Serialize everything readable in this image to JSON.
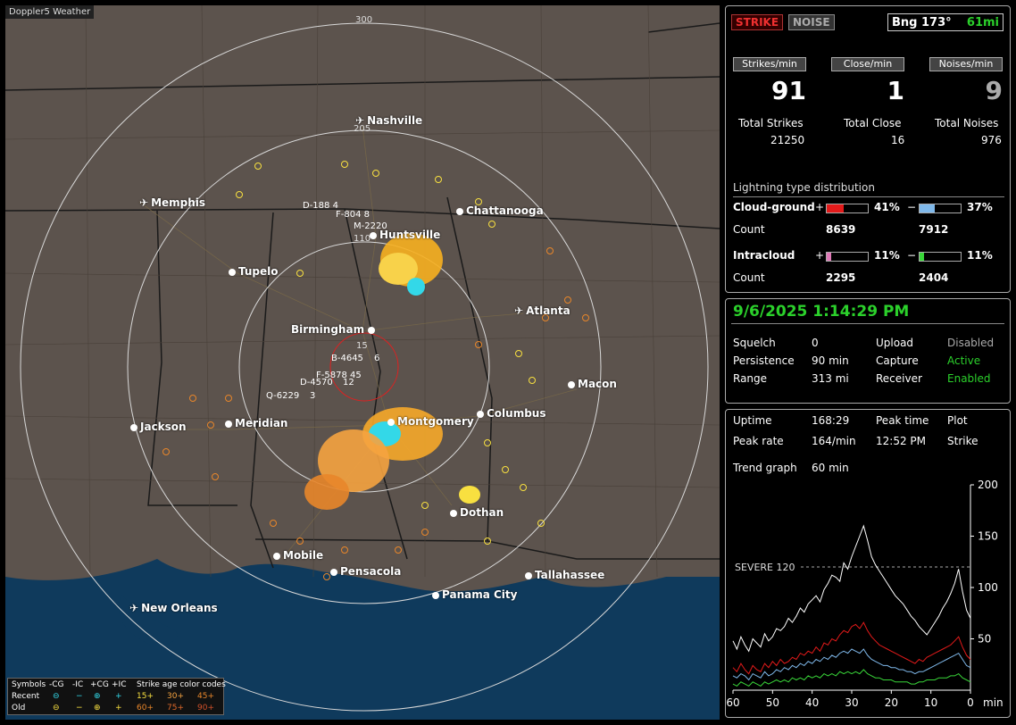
{
  "app": {
    "title": "Doppler5 Weather"
  },
  "colors": {
    "cg_pos": "#e31a1a",
    "cg_neg": "#7fb8ea",
    "ic_pos": "#e07ab8",
    "ic_neg": "#39d639",
    "accent_green": "#2bd02b"
  },
  "map": {
    "ring_labels": [
      "300",
      "205",
      "110",
      "15"
    ],
    "cities": [
      {
        "name": "Nashville",
        "icon": "plane-icon"
      },
      {
        "name": "Memphis",
        "icon": "plane-icon"
      },
      {
        "name": "Chattanooga",
        "icon": "dot"
      },
      {
        "name": "Huntsville",
        "icon": "dot"
      },
      {
        "name": "Tupelo",
        "icon": "dot"
      },
      {
        "name": "Atlanta",
        "icon": "plane-icon"
      },
      {
        "name": "Birmingham",
        "icon": "dot"
      },
      {
        "name": "Macon",
        "icon": "dot"
      },
      {
        "name": "Jackson",
        "icon": "dot"
      },
      {
        "name": "Meridian",
        "icon": "dot"
      },
      {
        "name": "Montgomery",
        "icon": "dot"
      },
      {
        "name": "Columbus",
        "icon": "dot"
      },
      {
        "name": "Dothan",
        "icon": "dot"
      },
      {
        "name": "Mobile",
        "icon": "dot"
      },
      {
        "name": "Pensacola",
        "icon": "dot"
      },
      {
        "name": "Tallahassee",
        "icon": "dot"
      },
      {
        "name": "Panama City",
        "icon": "dot"
      },
      {
        "name": "New Orleans",
        "icon": "plane-icon"
      }
    ],
    "storm_tags": [
      "D-188 4",
      "F-804 8",
      "M-2220",
      "B-4645",
      "6",
      "F-5878 45",
      "D-4570",
      "12",
      "Q-6229",
      "3"
    ]
  },
  "legend": {
    "symbols_label": "Symbols",
    "col_headers": [
      "-CG",
      "-IC",
      "+CG",
      "+IC"
    ],
    "age_label": "Strike age color codes",
    "recent_label": "Recent",
    "old_label": "Old",
    "recent_ages": [
      "15+",
      "30+",
      "45+"
    ],
    "old_ages": [
      "60+",
      "75+",
      "90+"
    ]
  },
  "status": {
    "strike_btn": "STRIKE",
    "noise_btn": "NOISE",
    "bearing": "Bng 173°",
    "distance": "61mi"
  },
  "rates": {
    "strikes_min_label": "Strikes/min",
    "strikes_min": "91",
    "close_min_label": "Close/min",
    "close_min": "1",
    "noises_min_label": "Noises/min",
    "noises_min": "9",
    "total_strikes_label": "Total Strikes",
    "total_strikes": "21250",
    "total_close_label": "Total Close",
    "total_close": "16",
    "total_noises_label": "Total Noises",
    "total_noises": "976"
  },
  "distribution": {
    "title": "Lightning type distribution",
    "cg_label": "Cloud-ground",
    "ic_label": "Intracloud",
    "count_label": "Count",
    "plus": "+",
    "minus": "−",
    "cg_pos_pct": "41%",
    "cg_pos_frac": 0.41,
    "cg_neg_pct": "37%",
    "cg_neg_frac": 0.37,
    "cg_pos_count": "8639",
    "cg_neg_count": "7912",
    "ic_pos_pct": "11%",
    "ic_pos_frac": 0.11,
    "ic_neg_pct": "11%",
    "ic_neg_frac": 0.11,
    "ic_pos_count": "2295",
    "ic_neg_count": "2404"
  },
  "settings": {
    "datetime": "9/6/2025 1:14:29 PM",
    "squelch_label": "Squelch",
    "squelch": "0",
    "persistence_label": "Persistence",
    "persistence": "90 min",
    "range_label": "Range",
    "range": "313 mi",
    "upload_label": "Upload",
    "upload": "Disabled",
    "capture_label": "Capture",
    "capture": "Active",
    "receiver_label": "Receiver",
    "receiver": "Enabled"
  },
  "stats": {
    "uptime_label": "Uptime",
    "uptime": "168:29",
    "peak_time_label": "Peak time",
    "peak_time": "12:52 PM",
    "plot_label": "Plot",
    "plot": "Strike",
    "peak_rate_label": "Peak rate",
    "peak_rate": "164/min",
    "trend_label": "Trend graph",
    "trend": "60 min"
  },
  "chart_data": {
    "type": "line",
    "xlabel": "min",
    "x_ticks": [
      "60",
      "50",
      "40",
      "30",
      "20",
      "10",
      "0"
    ],
    "y_ticks": [
      "200",
      "150",
      "100",
      "50"
    ],
    "xlim": [
      60,
      0
    ],
    "ylim": [
      0,
      200
    ],
    "threshold": {
      "label": "SEVERE 120",
      "value": 120
    },
    "series": [
      {
        "color": "#ffffff",
        "values": [
          48,
          40,
          52,
          44,
          38,
          50,
          46,
          42,
          55,
          48,
          52,
          60,
          58,
          62,
          70,
          66,
          72,
          80,
          76,
          84,
          88,
          92,
          86,
          98,
          104,
          112,
          110,
          106,
          124,
          118,
          130,
          140,
          150,
          160,
          146,
          130,
          122,
          116,
          110,
          104,
          98,
          92,
          88,
          84,
          78,
          72,
          68,
          62,
          58,
          54,
          60,
          66,
          72,
          80,
          86,
          94,
          104,
          118,
          96,
          78,
          70
        ]
      },
      {
        "color": "#e31a1a",
        "values": [
          22,
          18,
          26,
          20,
          16,
          24,
          20,
          18,
          26,
          22,
          28,
          24,
          30,
          26,
          28,
          32,
          30,
          36,
          34,
          38,
          36,
          42,
          38,
          46,
          44,
          50,
          48,
          54,
          58,
          56,
          62,
          64,
          60,
          66,
          58,
          52,
          48,
          44,
          42,
          40,
          38,
          36,
          34,
          32,
          30,
          28,
          26,
          30,
          28,
          32,
          34,
          36,
          38,
          40,
          42,
          44,
          48,
          52,
          42,
          34,
          30
        ]
      },
      {
        "color": "#7fb8ea",
        "values": [
          14,
          12,
          16,
          14,
          10,
          16,
          14,
          12,
          18,
          14,
          16,
          20,
          18,
          22,
          20,
          24,
          22,
          26,
          24,
          28,
          26,
          30,
          28,
          32,
          30,
          34,
          32,
          36,
          38,
          36,
          40,
          38,
          36,
          40,
          34,
          30,
          28,
          26,
          24,
          24,
          22,
          22,
          20,
          20,
          18,
          18,
          16,
          18,
          18,
          20,
          22,
          24,
          26,
          28,
          30,
          32,
          34,
          36,
          30,
          24,
          22
        ]
      },
      {
        "color": "#39d639",
        "values": [
          6,
          4,
          8,
          6,
          4,
          8,
          6,
          4,
          8,
          6,
          8,
          10,
          8,
          10,
          8,
          12,
          10,
          12,
          10,
          14,
          12,
          14,
          12,
          16,
          14,
          16,
          14,
          18,
          16,
          18,
          16,
          18,
          16,
          20,
          16,
          14,
          12,
          12,
          10,
          10,
          10,
          8,
          8,
          8,
          8,
          6,
          6,
          8,
          8,
          10,
          10,
          10,
          12,
          12,
          12,
          14,
          14,
          16,
          12,
          10,
          8
        ]
      }
    ]
  }
}
